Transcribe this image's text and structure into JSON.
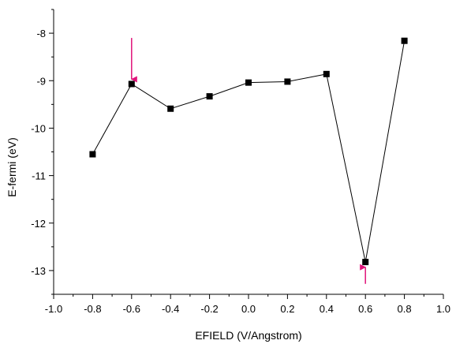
{
  "chart_data": {
    "type": "line",
    "title": "",
    "xlabel": "EFIELD (V/Angstrom)",
    "ylabel": "E-fermi  (eV)",
    "xlim": [
      -1.0,
      1.0
    ],
    "ylim": [
      -13.5,
      -7.5
    ],
    "xticks": [
      -1.0,
      -0.8,
      -0.6,
      -0.4,
      -0.2,
      0.0,
      0.2,
      0.4,
      0.6,
      0.8,
      1.0
    ],
    "xtick_labels": [
      "-1.0",
      "-0.8",
      "-0.6",
      "-0.4",
      "-0.2",
      "0.0",
      "0.2",
      "0.4",
      "0.6",
      "0.8",
      "1.0"
    ],
    "yticks": [
      -13,
      -12,
      -11,
      -10,
      -9,
      -8
    ],
    "ytick_labels": [
      "-13",
      "-12",
      "-11",
      "-10",
      "-9",
      "-8"
    ],
    "grid": false,
    "legend": "none",
    "series": [
      {
        "marker": "square",
        "color": "#000000",
        "x": [
          -0.8,
          -0.6,
          -0.4,
          -0.2,
          0.0,
          0.2,
          0.4,
          0.6,
          0.8
        ],
        "y": [
          -10.55,
          -9.07,
          -9.59,
          -9.33,
          -9.04,
          -9.02,
          -8.86,
          -12.82,
          -8.16
        ]
      }
    ],
    "annotations": [
      {
        "type": "arrow",
        "direction": "down",
        "color": "#e0137a",
        "x": -0.6,
        "y_from": -8.1,
        "y_to": -8.97
      },
      {
        "type": "arrow",
        "direction": "up",
        "color": "#e0137a",
        "x": 0.6,
        "y_from": -13.28,
        "y_to": -12.93
      }
    ]
  }
}
